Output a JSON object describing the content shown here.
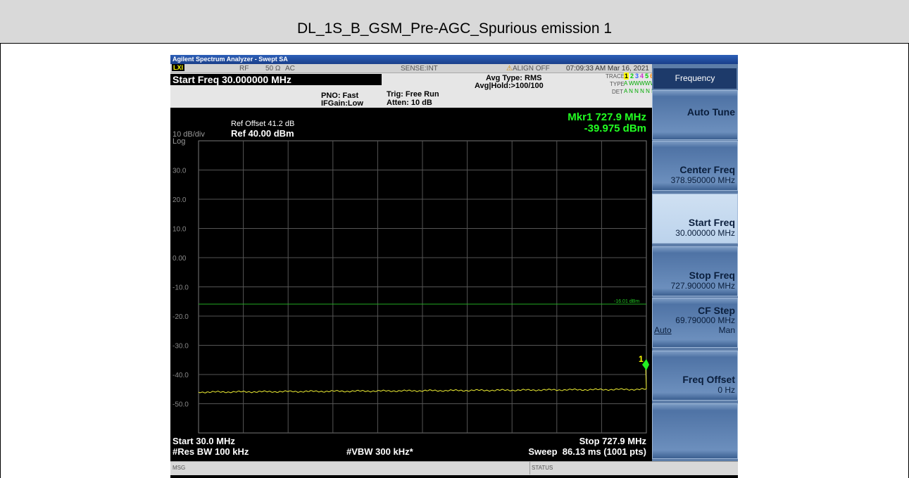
{
  "title": "DL_1S_B_GSM_Pre-AGC_Spurious emission 1",
  "window_title": "Agilent Spectrum Analyzer - Swept SA",
  "status_row": {
    "lxi": "LXI",
    "rf": "RF",
    "impedance": "50 Ω",
    "coupling": "AC",
    "sense": "SENSE:INT",
    "align": "ALIGN OFF",
    "datetime": "07:09:33 AM Mar 16, 2021"
  },
  "header": {
    "start_freq": "Start Freq 30.000000 MHz",
    "pno": "PNO: Fast",
    "ifgain": "IFGain:Low",
    "trig": "Trig: Free Run",
    "atten": "Atten: 10 dB",
    "avg_type": "Avg Type: RMS",
    "avg_hold": "Avg|Hold:>100/100",
    "trace_label": "TRACE",
    "trace_numbers": [
      "1",
      "2",
      "3",
      "4",
      "5",
      "6"
    ],
    "type_label": "TYPE",
    "type_value": "A WWWWW",
    "det_label": "DET",
    "det_value": "A N N N N N"
  },
  "plot": {
    "scale": "10 dB/div",
    "log": "Log",
    "ref_offset": "Ref Offset 41.2 dB",
    "ref_level": "Ref 40.00 dBm",
    "marker": "Mkr1 727.9 MHz",
    "marker_level": "-39.975 dBm",
    "y_labels": [
      "30.0",
      "20.0",
      "10.0",
      "0.00",
      "-10.0",
      "-20.0",
      "-30.0",
      "-40.0",
      "-50.0"
    ],
    "limit_label": "-16.01 dBm",
    "marker_number": "1"
  },
  "footer": {
    "start": "Start 30.0 MHz",
    "stop": "Stop 727.9 MHz",
    "rbw": "#Res BW 100 kHz",
    "vbw": "#VBW 300 kHz*",
    "sweep": "Sweep  86.13 ms (1001 pts)"
  },
  "status_bar": {
    "msg": "MSG",
    "status": "STATUS"
  },
  "softkeys": {
    "menu": "Frequency",
    "keys": [
      {
        "label": "Auto Tune"
      },
      {
        "label": "Center Freq",
        "value": "378.950000 MHz"
      },
      {
        "label": "Start Freq",
        "value": "30.000000 MHz"
      },
      {
        "label": "Stop Freq",
        "value": "727.900000 MHz"
      },
      {
        "label": "CF Step",
        "value": "69.790000 MHz",
        "auto": "Auto",
        "man": "Man"
      },
      {
        "label": "Freq Offset",
        "value": "0 Hz"
      }
    ]
  }
}
